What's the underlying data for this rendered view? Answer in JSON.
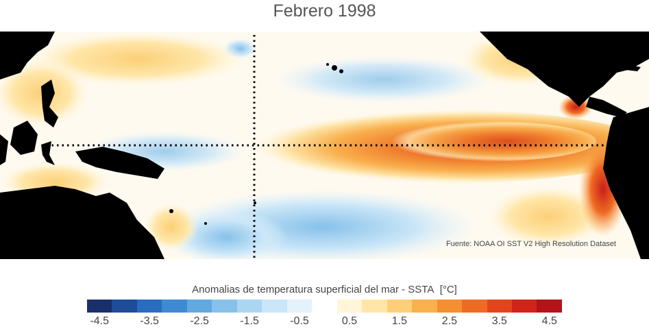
{
  "title": "Febrero 1998",
  "source": "Fuente: NOAA OI SST V2 High Resolution Dataset",
  "colorbar": {
    "label_text": "Anomalias de temperatura superficial del mar - SSTA",
    "label_unit": "[°C]",
    "colors": [
      "#1b2f6b",
      "#1f4c99",
      "#2a6cbf",
      "#3f8bd3",
      "#62a9e0",
      "#87c1ea",
      "#aad6f2",
      "#cae6f8",
      "#e4f3fb",
      "#ffffff",
      "#fff6d9",
      "#ffe6a8",
      "#fccf78",
      "#f9b04e",
      "#f58f32",
      "#ef6a22",
      "#e4441c",
      "#d0241a",
      "#b5131b"
    ],
    "tick_labels": [
      "-4.5",
      "-3.5",
      "-2.5",
      "-1.5",
      "-0.5",
      "0.5",
      "1.5",
      "2.5",
      "3.5",
      "4.5"
    ],
    "range": [
      -4.5,
      4.5
    ]
  },
  "map": {
    "land_color": "#000000",
    "gridline_style": "dotted"
  }
}
